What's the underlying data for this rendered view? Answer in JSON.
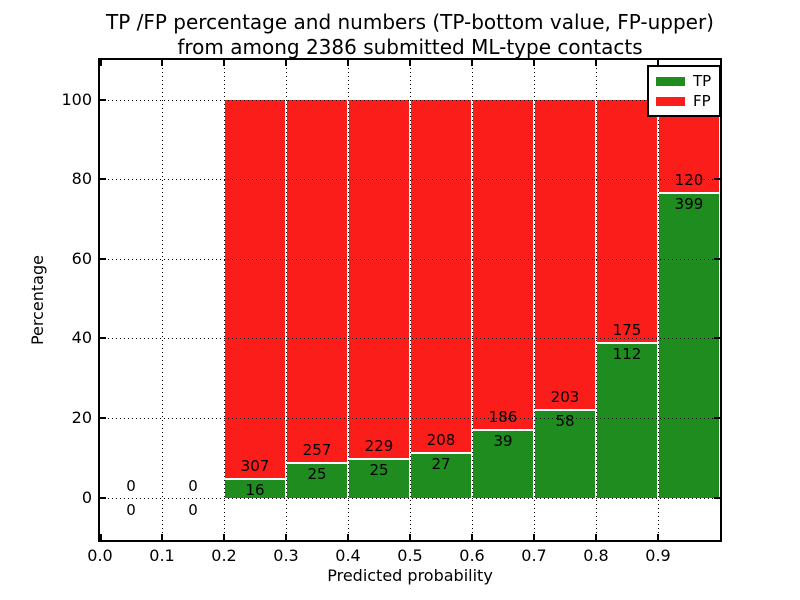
{
  "title": {
    "line1": "TP /FP percentage and numbers (TP-bottom value, FP-upper)",
    "line2": "from among 2386 submitted ML-type contacts"
  },
  "legend": {
    "position": "upper right",
    "entries": [
      {
        "label": "TP",
        "color": "#1e8c1e"
      },
      {
        "label": "FP",
        "color": "#fb1d1a"
      }
    ]
  },
  "chart_data": {
    "type": "bar",
    "subtype": "stacked-percentage",
    "title": "TP /FP percentage and numbers (TP-bottom value, FP-upper) from among 2386 submitted ML-type contacts",
    "xlabel": "Predicted probability",
    "ylabel": "Percentage",
    "xlim": [
      0.0,
      1.0
    ],
    "ylim": [
      -11,
      110
    ],
    "x_ticks": [
      "0.0",
      "0.1",
      "0.2",
      "0.3",
      "0.4",
      "0.5",
      "0.6",
      "0.7",
      "0.8",
      "0.9"
    ],
    "y_ticks": [
      "0",
      "20",
      "40",
      "60",
      "80",
      "100"
    ],
    "grid": "dotted, drawn above bars",
    "total_contacts": 2386,
    "colors": {
      "tp": "#1e8c1e",
      "fp": "#fb1d1a"
    },
    "note": "Bars show TP percentage (green, bottom) vs FP percentage (red, top) per probability bin; labels give raw counts: TP below boundary, FP above",
    "bins": [
      {
        "range": [
          0.0,
          0.1
        ],
        "tp": 0,
        "fp": 0
      },
      {
        "range": [
          0.1,
          0.2
        ],
        "tp": 0,
        "fp": 0
      },
      {
        "range": [
          0.2,
          0.3
        ],
        "tp": 16,
        "fp": 307
      },
      {
        "range": [
          0.3,
          0.4
        ],
        "tp": 25,
        "fp": 257
      },
      {
        "range": [
          0.4,
          0.5
        ],
        "tp": 25,
        "fp": 229
      },
      {
        "range": [
          0.5,
          0.6
        ],
        "tp": 27,
        "fp": 208
      },
      {
        "range": [
          0.6,
          0.7
        ],
        "tp": 39,
        "fp": 186
      },
      {
        "range": [
          0.7,
          0.8
        ],
        "tp": 58,
        "fp": 203
      },
      {
        "range": [
          0.8,
          0.9
        ],
        "tp": 112,
        "fp": 175
      },
      {
        "range": [
          0.9,
          1.0
        ],
        "tp": 399,
        "fp": 120
      }
    ]
  }
}
